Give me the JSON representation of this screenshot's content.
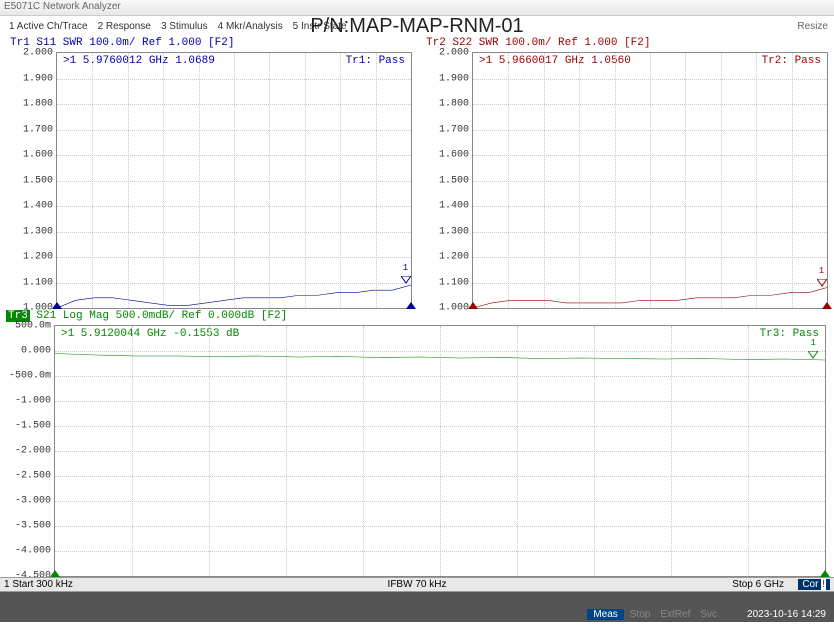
{
  "app_title": "E5071C Network Analyzer",
  "menu": [
    "1 Active Ch/Trace",
    "2 Response",
    "3 Stimulus",
    "4 Mkr/Analysis",
    "5 Instr State"
  ],
  "main_title": "P/N:MAP-MAP-RNM-01",
  "resize": "Resize",
  "tr1": {
    "label": "Tr1 S11 SWR 100.0m/ Ref 1.000 [F2]",
    "marker": ">1  5.9760012 GHz   1.0689",
    "pass": "Tr1: Pass",
    "color": "#000099"
  },
  "tr2": {
    "label": "Tr2 S22 SWR 100.0m/ Ref 1.000 [F2]",
    "marker": ">1  5.9660017 GHz   1.0560",
    "pass": "Tr2: Pass",
    "color": "#990000"
  },
  "tr3": {
    "badge": "Tr3",
    "label": " S21 Log Mag 500.0mdB/ Ref 0.000dB [F2]",
    "marker": ">1  5.9120044 GHz  -0.1553 dB",
    "pass": "Tr3: Pass",
    "color": "#008800"
  },
  "swr_chart": {
    "ylim": [
      1.0,
      2.0
    ],
    "ytick_step": 0.1,
    "yticks": [
      "2.000",
      "1.900",
      "1.800",
      "1.700",
      "1.600",
      "1.500",
      "1.400",
      "1.300",
      "1.200",
      "1.100",
      "1.000"
    ],
    "grid_color": "#cccccc"
  },
  "mag_chart": {
    "ylim": [
      -4.5,
      0.5
    ],
    "ytick_step": 0.5,
    "yticks": [
      "500.0m",
      "0.000",
      "-500.0m",
      "-1.000",
      "-1.500",
      "-2.000",
      "-2.500",
      "-3.000",
      "-3.500",
      "-4.000",
      "-4.500"
    ],
    "grid_color": "#cccccc"
  },
  "tr1_data": {
    "type": "line",
    "values": [
      1.0,
      1.03,
      1.04,
      1.04,
      1.03,
      1.02,
      1.01,
      1.01,
      1.02,
      1.03,
      1.04,
      1.04,
      1.04,
      1.05,
      1.05,
      1.06,
      1.06,
      1.07,
      1.07,
      1.09
    ]
  },
  "tr2_data": {
    "type": "line",
    "values": [
      1.0,
      1.02,
      1.03,
      1.03,
      1.03,
      1.02,
      1.02,
      1.02,
      1.02,
      1.03,
      1.03,
      1.03,
      1.04,
      1.04,
      1.04,
      1.05,
      1.05,
      1.06,
      1.06,
      1.08
    ]
  },
  "tr3_data": {
    "type": "line",
    "values": [
      -0.05,
      -0.08,
      -0.1,
      -0.1,
      -0.11,
      -0.1,
      -0.12,
      -0.11,
      -0.13,
      -0.12,
      -0.14,
      -0.13,
      -0.15,
      -0.14,
      -0.15,
      -0.16,
      -0.15,
      -0.17,
      -0.16,
      -0.18
    ]
  },
  "axis": {
    "start": "1  Start 300 kHz",
    "center": "IFBW 70 kHz",
    "stop": "Stop 6 GHz",
    "cor": "Cor"
  },
  "status": {
    "meas": "Meas",
    "items": [
      "Stop",
      "ExtRef",
      "Svc"
    ],
    "datetime": "2023-10-16 14:29"
  }
}
